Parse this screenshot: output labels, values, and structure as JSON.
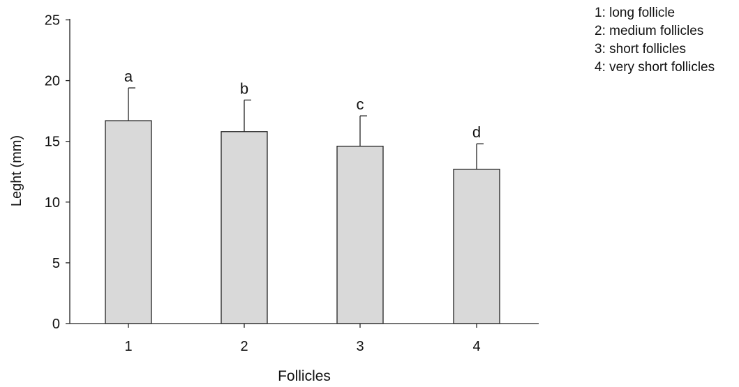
{
  "chart_data": {
    "type": "bar",
    "title": "",
    "xlabel": "Follicles",
    "ylabel": "Leght (mm)",
    "categories": [
      "1",
      "2",
      "3",
      "4"
    ],
    "values": [
      16.7,
      15.8,
      14.6,
      12.7
    ],
    "error_upper": [
      19.4,
      18.4,
      17.1,
      14.8
    ],
    "annotations": [
      "a",
      "b",
      "c",
      "d"
    ],
    "ylim": [
      0,
      25
    ],
    "yticks": [
      0,
      5,
      10,
      15,
      20,
      25
    ],
    "bar_color": "#d9d9d9",
    "edge_color": "#222222",
    "grid": false,
    "legend": {
      "placement": "top-right",
      "entries": [
        "1: long follicle",
        "2: medium follicles",
        "3: short follicles",
        "4: very short follicles"
      ]
    }
  }
}
